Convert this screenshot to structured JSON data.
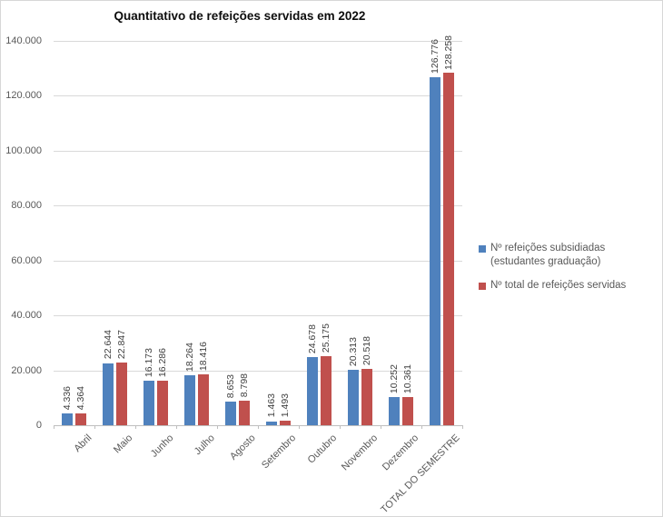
{
  "chart_data": {
    "type": "bar",
    "title": "Quantitativo de refeições servidas em 2022",
    "xlabel": "",
    "ylabel": "",
    "categories": [
      "Abril",
      "Maio",
      "Junho",
      "Julho",
      "Agosto",
      "Setembro",
      "Outubro",
      "Novembro",
      "Dezembro",
      "TOTAL DO SEMESTRE"
    ],
    "series": [
      {
        "name": "Nº refeições subsidiadas (estudantes graduação)",
        "color": "#4F81BD",
        "values": [
          4336,
          22644,
          16173,
          18264,
          8653,
          1463,
          24678,
          20313,
          10252,
          126776
        ]
      },
      {
        "name": "Nº total de refeições servidas",
        "color": "#C0504D",
        "values": [
          4364,
          22847,
          16286,
          18416,
          8798,
          1493,
          25175,
          20518,
          10361,
          128258
        ]
      }
    ],
    "ylim": [
      0,
      140000
    ],
    "ytick_step": 20000,
    "ytick_labels": [
      "0",
      "20.000",
      "40.000",
      "60.000",
      "80.000",
      "100.000",
      "120.000",
      "140.000"
    ],
    "grid": true,
    "legend_position": "right",
    "data_labels": "rotated-vertical, thousands separated by dot",
    "colors": {
      "gridline": "#D9D9D9",
      "axis_line": "#BFBFBF",
      "axis_text": "#595959",
      "data_label_text": "#3F3F3F",
      "title_text": "#0D0D0D",
      "chart_border": "#D7D7D7"
    }
  }
}
